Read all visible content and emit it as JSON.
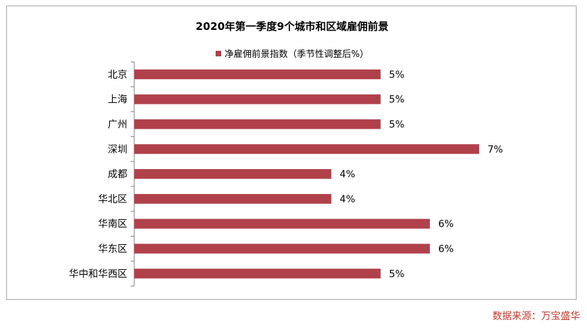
{
  "colors": {
    "bar": "#b0414b",
    "axis": "#7f7f7f",
    "source_text": "#c0392b"
  },
  "chart_data": {
    "type": "bar",
    "orientation": "horizontal",
    "title": "2020年第一季度9个城市和区域雇佣前景",
    "legend": {
      "position": "top",
      "entries": [
        "净雇佣前景指数（季节性调整后%）"
      ]
    },
    "categories": [
      "北京",
      "上海",
      "广州",
      "深圳",
      "成都",
      "华北区",
      "华南区",
      "华东区",
      "华中和华西区"
    ],
    "series": [
      {
        "name": "净雇佣前景指数（季节性调整后%）",
        "values": [
          5,
          5,
          5,
          7,
          4,
          4,
          6,
          6,
          5
        ]
      }
    ],
    "data_labels": [
      "5%",
      "5%",
      "5%",
      "7%",
      "4%",
      "4%",
      "6%",
      "6%",
      "5%"
    ],
    "xlim": [
      0,
      7
    ],
    "grid": false
  },
  "source": "数据来源：万宝盛华"
}
